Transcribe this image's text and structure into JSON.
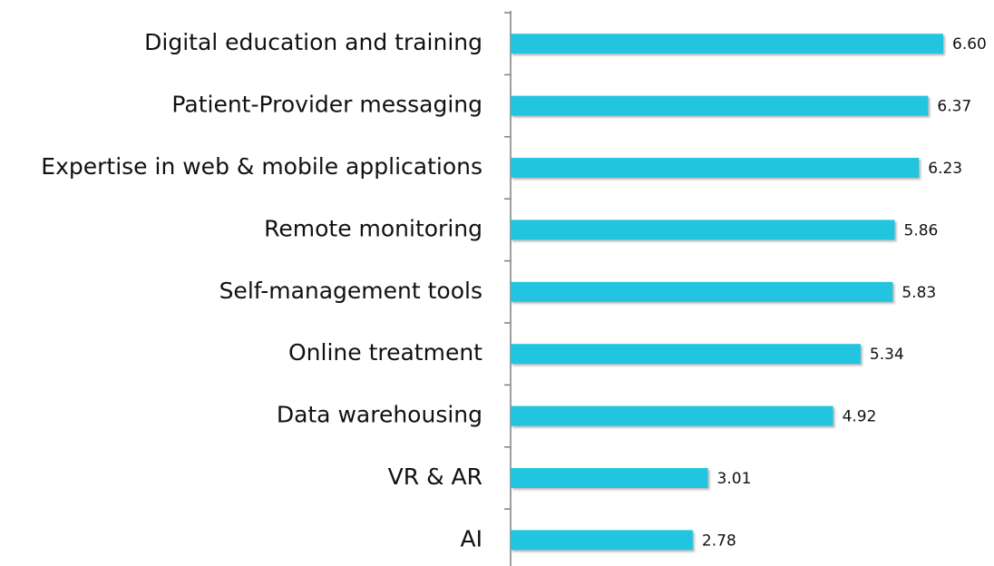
{
  "chart_data": {
    "type": "barh",
    "categories": [
      "Digital education and training",
      "Patient-Provider messaging",
      "Expertise in web & mobile applications",
      "Remote monitoring",
      "Self-management tools",
      "Online treatment",
      "Data warehousing",
      "VR & AR",
      "AI"
    ],
    "values": [
      6.6,
      6.37,
      6.23,
      5.86,
      5.83,
      5.34,
      4.92,
      3.01,
      2.78
    ],
    "value_labels": [
      "6.60",
      "6.37",
      "6.23",
      "5.86",
      "5.83",
      "5.34",
      "4.92",
      "3.01",
      "2.78"
    ],
    "color": "#22c5df"
  }
}
